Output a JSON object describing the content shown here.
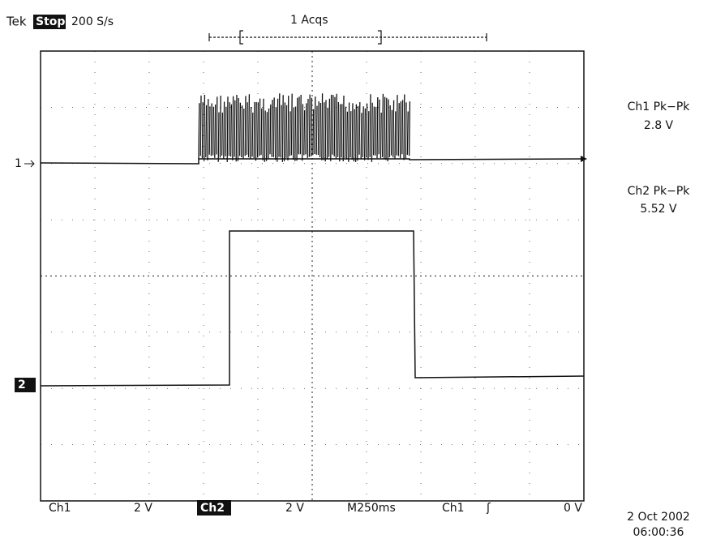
{
  "header": {
    "brand": "Tek",
    "state": "Stop",
    "rate": "200 S/s",
    "acquisitions": "1 Acqs"
  },
  "measurements": [
    {
      "label": "Ch1 Pk−Pk",
      "value": "2.8 V"
    },
    {
      "label": "Ch2 Pk−Pk",
      "value": "5.52 V"
    }
  ],
  "markers": {
    "ch1": "1",
    "ch2": "2"
  },
  "footer": {
    "ch1_label": "Ch1",
    "ch1_scale": "2 V",
    "ch2_label": "Ch2",
    "ch2_scale": "2 V",
    "timebase": "M250ms",
    "trigger_source": "Ch1",
    "trigger_slope": "ʃ",
    "trigger_level": "0 V"
  },
  "timestamp": {
    "date": "2 Oct 2002",
    "time": "06:00:36"
  }
}
